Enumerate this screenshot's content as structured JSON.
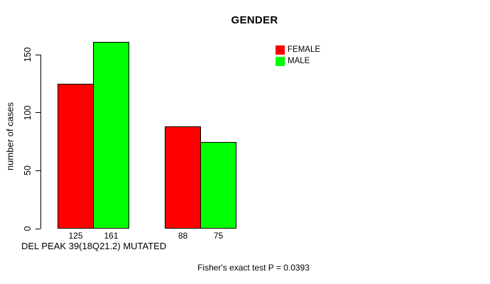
{
  "title": "GENDER",
  "footer": "Fisher's exact test P = 0.0393",
  "legend": [
    {
      "label": "FEMALE",
      "color": "#FF0000"
    },
    {
      "label": "MALE",
      "color": "#00FF00"
    }
  ],
  "chart_data": {
    "type": "bar",
    "title": "GENDER",
    "xlabel": "DEL PEAK 39(18Q21.2) MUTATED",
    "ylabel": "number of cases",
    "categories": [
      "",
      ""
    ],
    "series": [
      {
        "name": "FEMALE",
        "color": "#FF0000",
        "values": [
          125,
          88
        ]
      },
      {
        "name": "MALE",
        "color": "#00FF00",
        "values": [
          161,
          75
        ]
      }
    ],
    "value_labels_shown": true,
    "ylim": [
      0,
      165
    ],
    "yticks": [
      0,
      50,
      100,
      150
    ],
    "grid": false,
    "legend_position": "top-right",
    "annotation": "Fisher's exact test P = 0.0393"
  }
}
